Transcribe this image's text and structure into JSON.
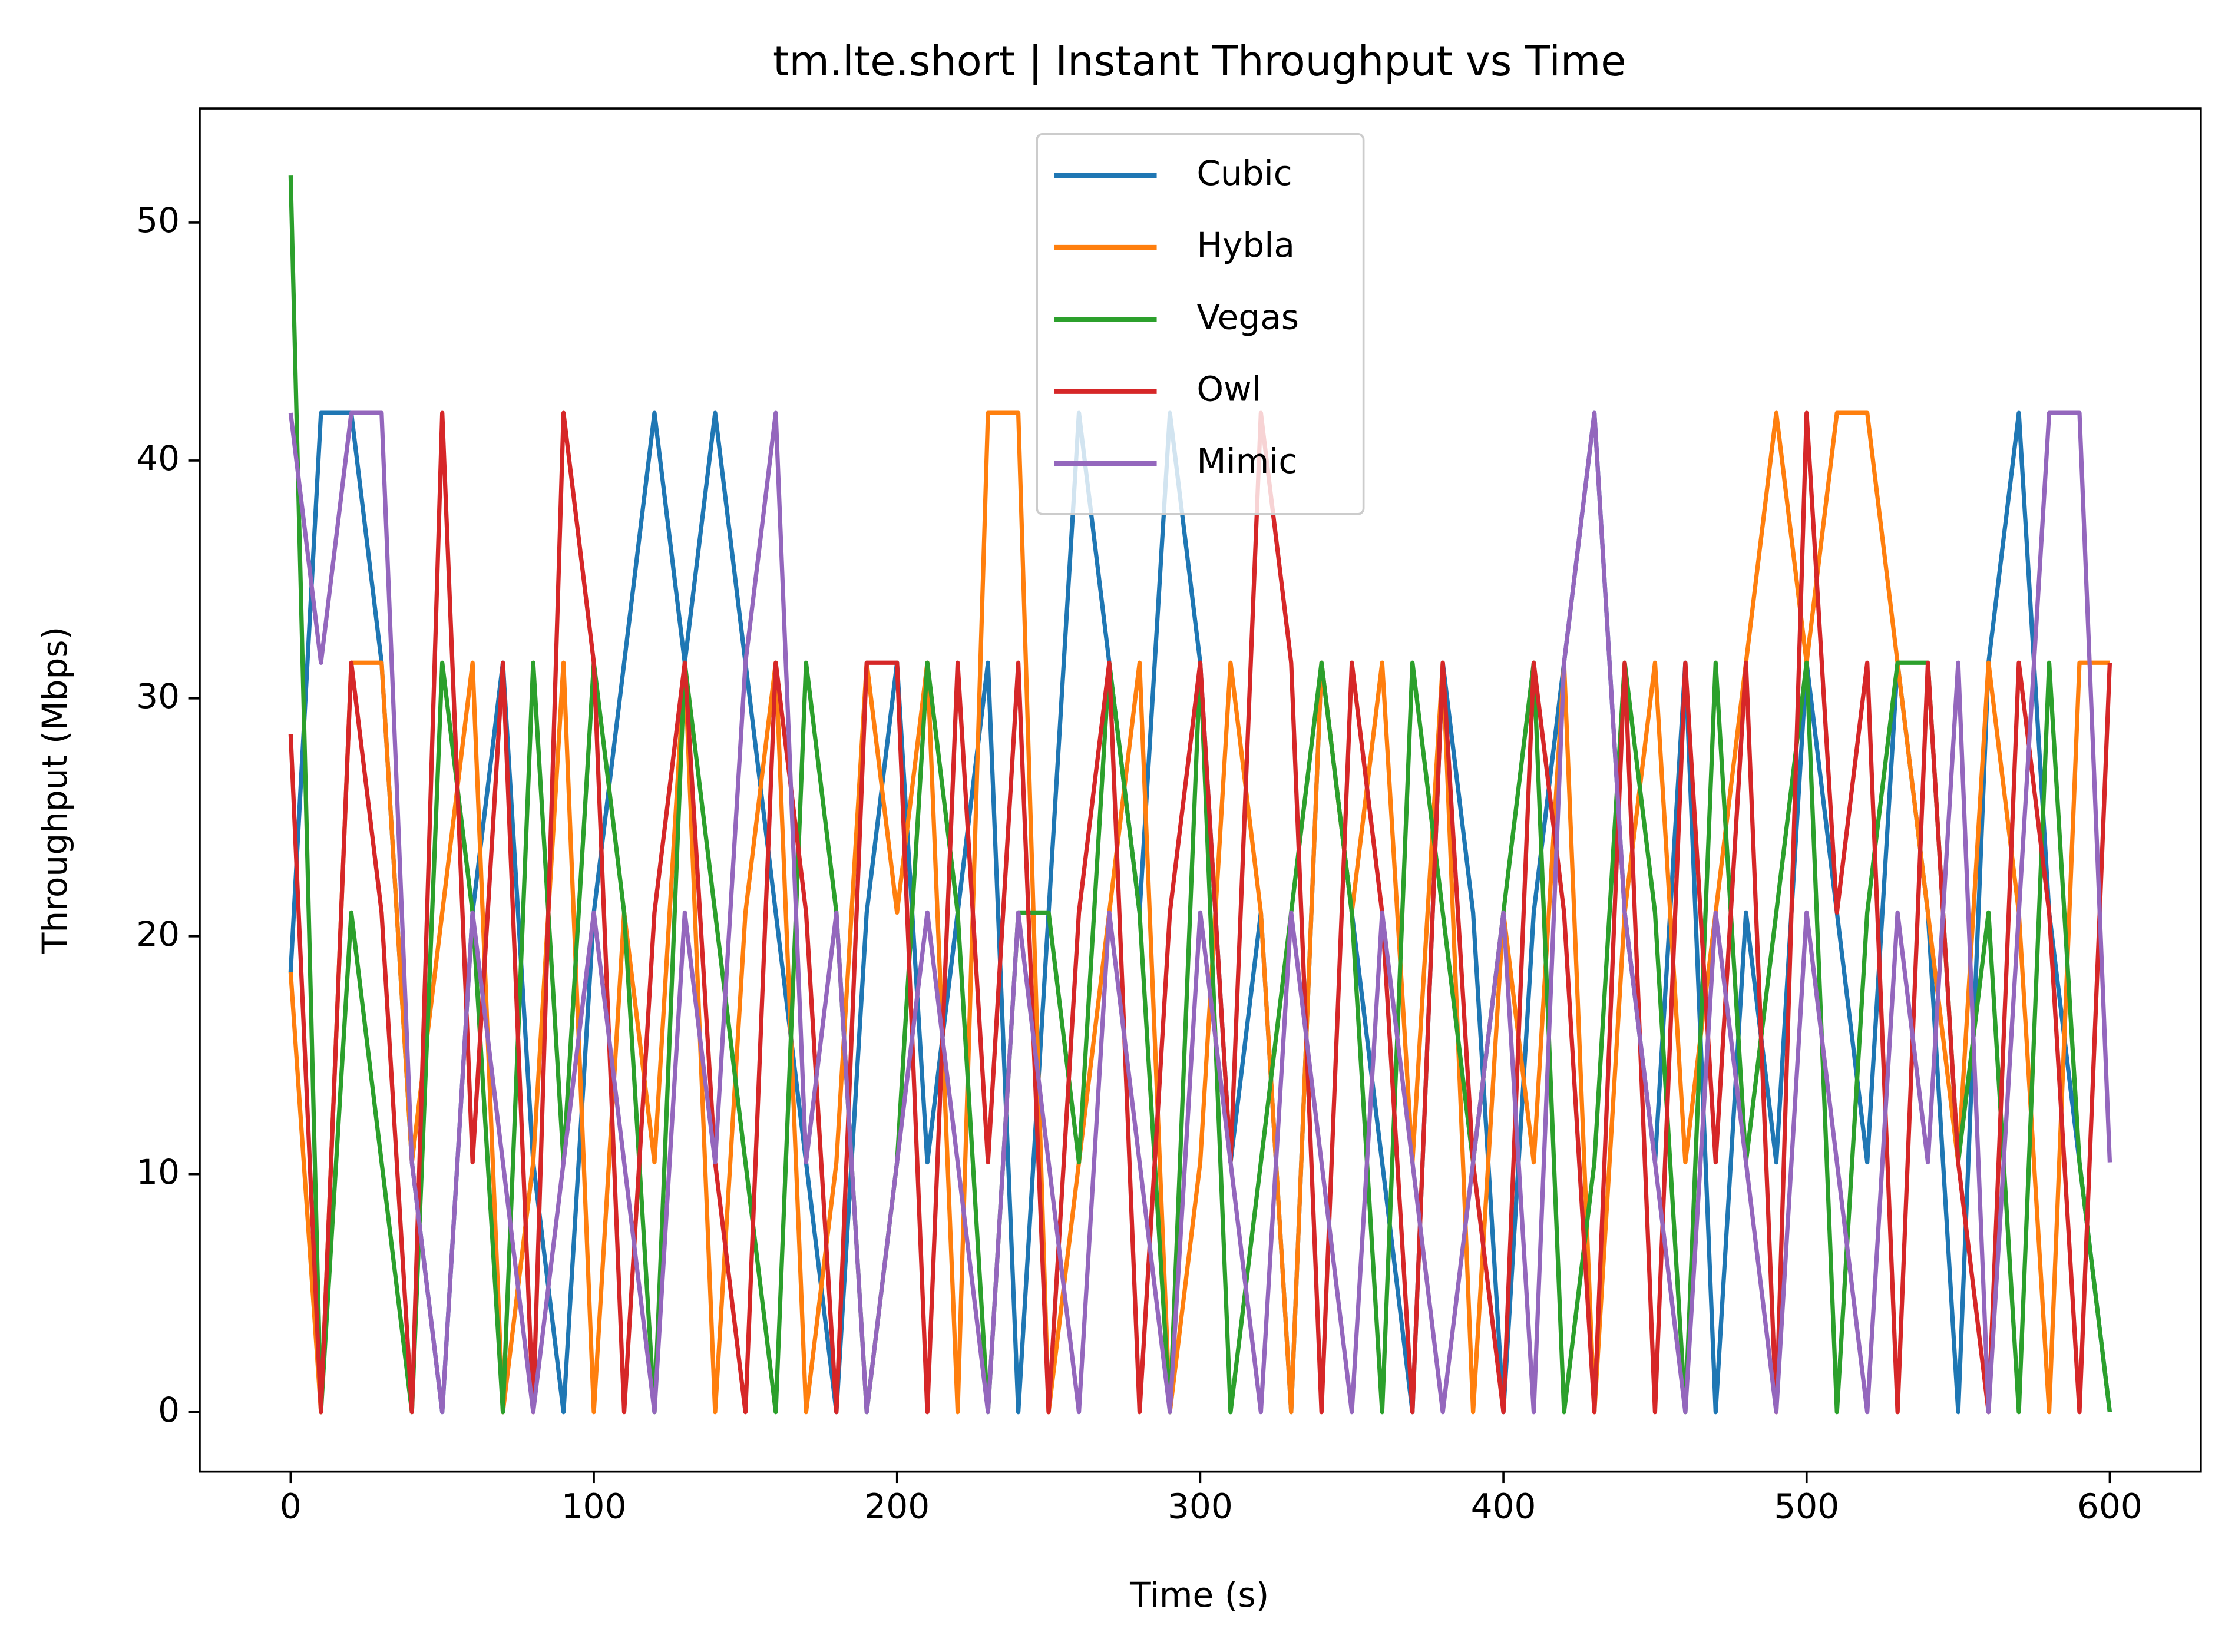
{
  "chart_data": {
    "type": "line",
    "title": "tm.lte.short | Instant Throughput vs Time",
    "x_label": "Time (s)",
    "y_label": "Throughput (Mbps)",
    "x": [
      0,
      10,
      20,
      30,
      40,
      50,
      60,
      70,
      80,
      90,
      100,
      110,
      120,
      130,
      140,
      150,
      160,
      170,
      180,
      190,
      200,
      210,
      220,
      230,
      240,
      250,
      260,
      270,
      280,
      290,
      300,
      310,
      320,
      330,
      340,
      350,
      360,
      370,
      380,
      390,
      400,
      410,
      420,
      430,
      440,
      450,
      460,
      470,
      480,
      490,
      500,
      510,
      520,
      530,
      540,
      550,
      560,
      570,
      580,
      590,
      600
    ],
    "series": [
      {
        "name": "Cubic",
        "color": "#1f77b4",
        "values": [
          18.5,
          42,
          42,
          31.5,
          10.5,
          0,
          21,
          31.5,
          10.5,
          0,
          21,
          31.5,
          42,
          31.5,
          42,
          31.5,
          21,
          10.5,
          0,
          21,
          31.5,
          10.5,
          21,
          31.5,
          0,
          21,
          42,
          31.5,
          21,
          42,
          31.5,
          10.5,
          21,
          0,
          31.5,
          21,
          10.5,
          0,
          31.5,
          21,
          0,
          21,
          31.5,
          42,
          21,
          10.5,
          31.5,
          0,
          21,
          10.5,
          31.5,
          21,
          10.5,
          31.5,
          21,
          0,
          31.5,
          42,
          21,
          10.5,
          0
        ]
      },
      {
        "name": "Hybla",
        "color": "#ff7f0e",
        "values": [
          18.5,
          0,
          31.5,
          31.5,
          10.5,
          21,
          31.5,
          0,
          10.5,
          31.5,
          0,
          21,
          10.5,
          31.5,
          0,
          21,
          31.5,
          0,
          10.5,
          31.5,
          21,
          31.5,
          0,
          42,
          42,
          0,
          10.5,
          21,
          31.5,
          0,
          10.5,
          31.5,
          21,
          0,
          31.5,
          21,
          31.5,
          10.5,
          31.5,
          0,
          21,
          10.5,
          31.5,
          0,
          21,
          31.5,
          10.5,
          21,
          31.5,
          42,
          31.5,
          42,
          42,
          31.5,
          21,
          10.5,
          31.5,
          21,
          0,
          31.5,
          31.5
        ]
      },
      {
        "name": "Vegas",
        "color": "#2ca02c",
        "values": [
          52,
          0,
          21,
          10.5,
          0,
          31.5,
          21,
          0,
          31.5,
          10.5,
          31.5,
          21,
          0,
          31.5,
          21,
          10.5,
          0,
          31.5,
          21,
          0,
          10.5,
          31.5,
          21,
          0,
          21,
          21,
          10.5,
          31.5,
          21,
          0,
          31.5,
          0,
          10.5,
          21,
          31.5,
          21,
          0,
          31.5,
          21,
          10.5,
          21,
          31.5,
          0,
          10.5,
          31.5,
          21,
          0,
          31.5,
          10.5,
          21,
          31.5,
          0,
          21,
          31.5,
          31.5,
          10.5,
          21,
          0,
          31.5,
          10.5,
          0
        ]
      },
      {
        "name": "Owl",
        "color": "#d62728",
        "values": [
          28.5,
          0,
          31.5,
          21,
          0,
          42,
          10.5,
          31.5,
          0,
          42,
          31.5,
          0,
          21,
          31.5,
          10.5,
          0,
          31.5,
          21,
          0,
          31.5,
          31.5,
          0,
          31.5,
          10.5,
          31.5,
          0,
          21,
          31.5,
          0,
          21,
          31.5,
          10.5,
          42,
          31.5,
          0,
          31.5,
          21,
          0,
          31.5,
          10.5,
          0,
          31.5,
          21,
          0,
          31.5,
          0,
          31.5,
          10.5,
          31.5,
          0,
          42,
          21,
          31.5,
          0,
          31.5,
          10.5,
          0,
          31.5,
          21,
          0,
          31.5
        ]
      },
      {
        "name": "Mimic",
        "color": "#9467bd",
        "values": [
          42,
          31.5,
          42,
          42,
          10.5,
          0,
          21,
          10.5,
          0,
          10.5,
          21,
          10.5,
          0,
          21,
          10.5,
          31.5,
          42,
          10.5,
          21,
          0,
          10.5,
          21,
          10.5,
          0,
          21,
          10.5,
          0,
          21,
          10.5,
          0,
          21,
          10.5,
          0,
          21,
          10.5,
          0,
          21,
          10.5,
          0,
          10.5,
          21,
          0,
          31.5,
          42,
          21,
          10.5,
          0,
          21,
          10.5,
          0,
          21,
          10.5,
          0,
          21,
          10.5,
          31.5,
          0,
          21,
          42,
          42,
          10.5
        ]
      }
    ],
    "xlim": [
      -30,
      630
    ],
    "ylim": [
      -2.5,
      54.8
    ],
    "xticks": [
      0,
      100,
      200,
      300,
      400,
      500,
      600
    ],
    "yticks": [
      0,
      10,
      20,
      30,
      40,
      50
    ],
    "grid": false,
    "legend": "upper center"
  }
}
